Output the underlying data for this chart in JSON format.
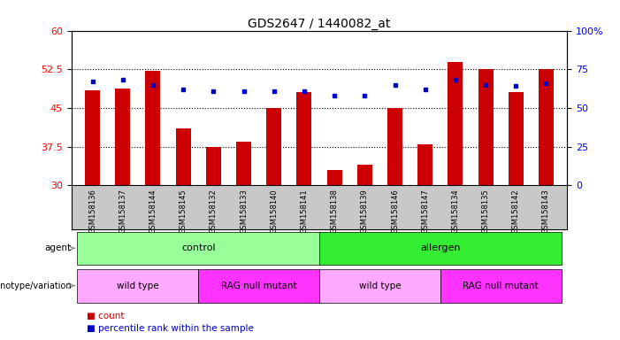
{
  "title": "GDS2647 / 1440082_at",
  "samples": [
    "GSM158136",
    "GSM158137",
    "GSM158144",
    "GSM158145",
    "GSM158132",
    "GSM158133",
    "GSM158140",
    "GSM158141",
    "GSM158138",
    "GSM158139",
    "GSM158146",
    "GSM158147",
    "GSM158134",
    "GSM158135",
    "GSM158142",
    "GSM158143"
  ],
  "counts": [
    48.5,
    48.8,
    52.2,
    41.0,
    37.5,
    38.5,
    45.0,
    48.0,
    33.0,
    34.0,
    45.0,
    38.0,
    54.0,
    52.5,
    48.0,
    52.5
  ],
  "percentile": [
    67,
    68,
    65,
    62,
    61,
    61,
    61,
    61,
    58,
    58,
    65,
    62,
    68,
    65,
    64,
    66
  ],
  "ylim_left": [
    30,
    60
  ],
  "ylim_right": [
    0,
    100
  ],
  "yticks_left": [
    30,
    37.5,
    45,
    52.5,
    60
  ],
  "yticks_right": [
    0,
    25,
    50,
    75,
    100
  ],
  "bar_color": "#cc0000",
  "dot_color": "#0000cc",
  "bg_color": "#ffffff",
  "xtick_bg_color": "#c8c8c8",
  "agent_control_color": "#99ff99",
  "agent_allergen_color": "#33ee33",
  "genotype_wt_color": "#ffaaff",
  "genotype_rag_color": "#ff33ff",
  "agent_segments": [
    {
      "label": "control",
      "start": 0,
      "end": 8
    },
    {
      "label": "allergen",
      "start": 8,
      "end": 16
    }
  ],
  "genotype_segments": [
    {
      "label": "wild type",
      "start": 0,
      "end": 4
    },
    {
      "label": "RAG null mutant",
      "start": 4,
      "end": 8
    },
    {
      "label": "wild type",
      "start": 8,
      "end": 12
    },
    {
      "label": "RAG null mutant",
      "start": 12,
      "end": 16
    }
  ],
  "legend_count_label": "count",
  "legend_pct_label": "percentile rank within the sample",
  "arrow_color": "#888888"
}
